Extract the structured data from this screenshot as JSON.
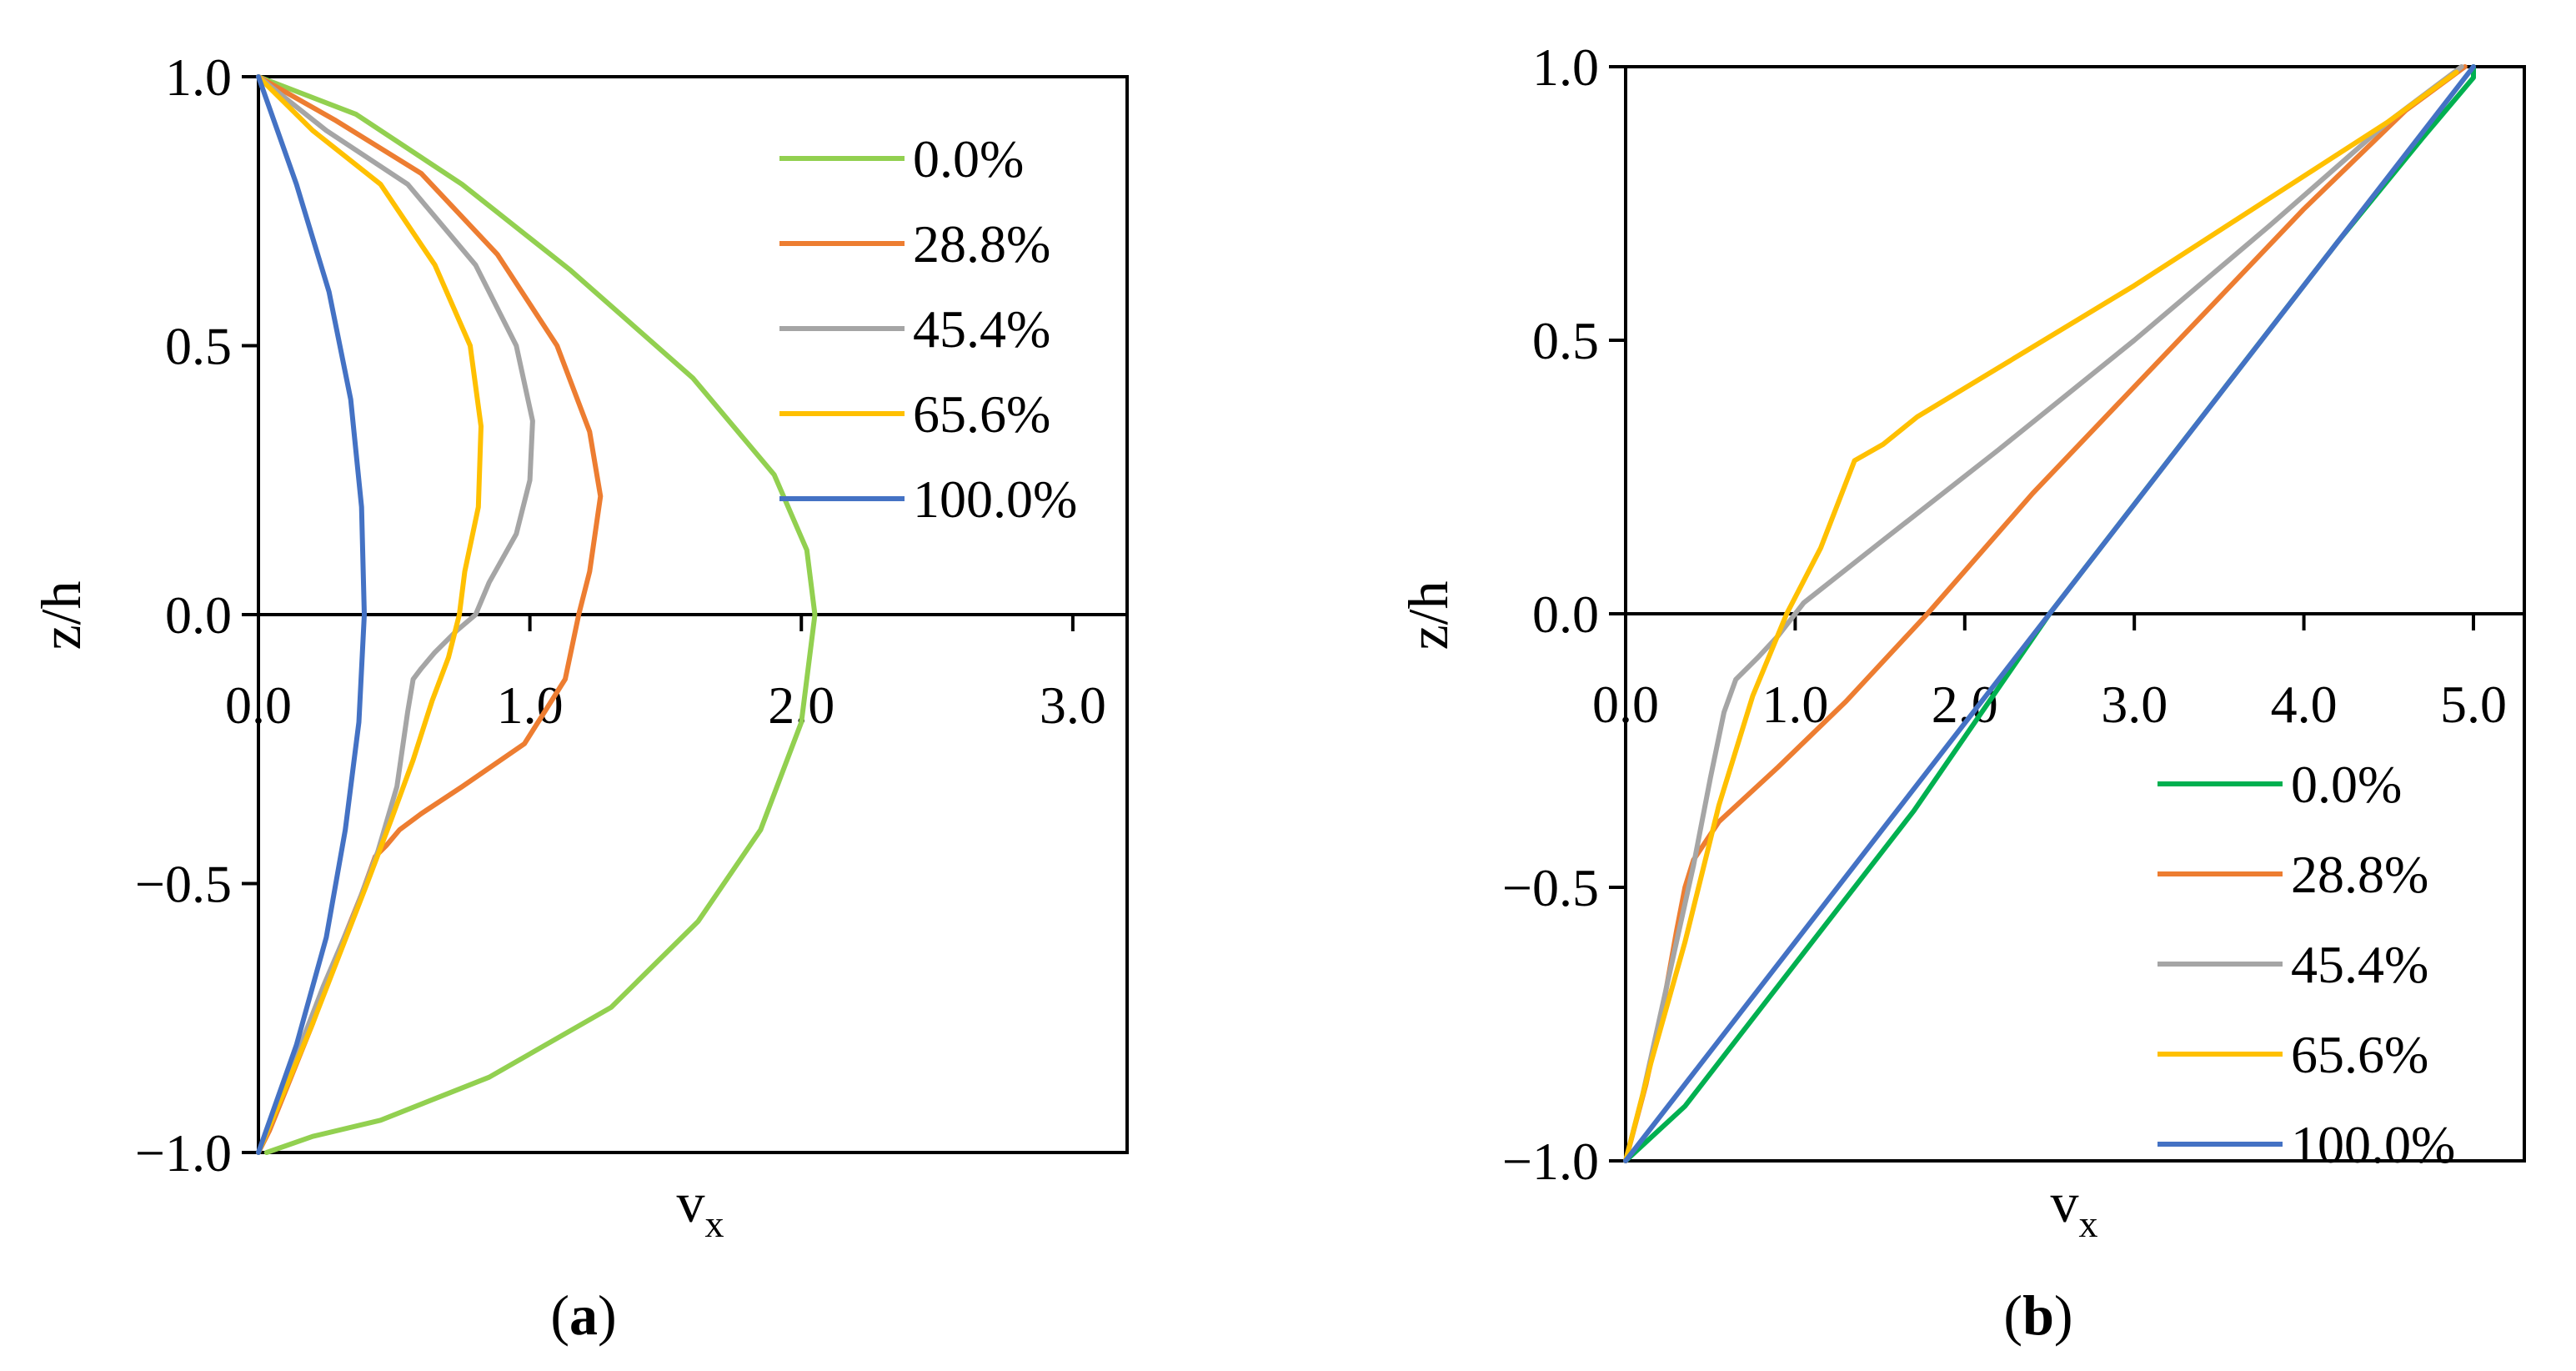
{
  "chart_data": [
    {
      "type": "line",
      "panel": "a",
      "caption_letter": "a",
      "caption_open": "(",
      "caption_close": ")",
      "xlabel": "v",
      "xlabel_sub": "x",
      "ylabel": "z/h",
      "xlim": [
        0,
        3.2
      ],
      "ylim": [
        -1,
        1
      ],
      "xticks": [
        0.0,
        1.0,
        2.0,
        3.0
      ],
      "xtick_labels": [
        "0.0",
        "1.0",
        "2.0",
        "3.0"
      ],
      "yticks": [
        1.0,
        0.5,
        0.0,
        -0.5,
        -1.0
      ],
      "ytick_labels": [
        "1.0",
        "0.5",
        "0.0",
        "−0.5",
        "−1.0"
      ],
      "legend_position": "top-right",
      "series": [
        {
          "name": "0.0%",
          "color": "#92d050",
          "points": [
            [
              0,
              1.0
            ],
            [
              0.36,
              0.93
            ],
            [
              0.75,
              0.8
            ],
            [
              1.15,
              0.64
            ],
            [
              1.6,
              0.44
            ],
            [
              1.9,
              0.26
            ],
            [
              2.02,
              0.12
            ],
            [
              2.05,
              0.0
            ],
            [
              2.0,
              -0.2
            ],
            [
              1.85,
              -0.4
            ],
            [
              1.62,
              -0.57
            ],
            [
              1.3,
              -0.73
            ],
            [
              0.85,
              -0.86
            ],
            [
              0.45,
              -0.94
            ],
            [
              0.2,
              -0.97
            ],
            [
              0.03,
              -1.0
            ]
          ]
        },
        {
          "name": "28.8%",
          "color": "#ed7d31",
          "points": [
            [
              0,
              1.0
            ],
            [
              0.28,
              0.92
            ],
            [
              0.6,
              0.82
            ],
            [
              0.88,
              0.67
            ],
            [
              1.1,
              0.5
            ],
            [
              1.22,
              0.34
            ],
            [
              1.26,
              0.22
            ],
            [
              1.22,
              0.08
            ],
            [
              1.18,
              0.0
            ],
            [
              1.13,
              -0.12
            ],
            [
              0.98,
              -0.24
            ],
            [
              0.75,
              -0.32
            ],
            [
              0.6,
              -0.37
            ],
            [
              0.52,
              -0.4
            ],
            [
              0.47,
              -0.43
            ],
            [
              0.43,
              -0.45
            ],
            [
              0.38,
              -0.52
            ],
            [
              0.3,
              -0.62
            ],
            [
              0.2,
              -0.76
            ],
            [
              0.12,
              -0.86
            ],
            [
              0.04,
              -0.96
            ],
            [
              0,
              -1.0
            ]
          ]
        },
        {
          "name": "45.4%",
          "color": "#a5a5a5",
          "points": [
            [
              0,
              1.0
            ],
            [
              0.25,
              0.9
            ],
            [
              0.55,
              0.8
            ],
            [
              0.8,
              0.65
            ],
            [
              0.95,
              0.5
            ],
            [
              1.01,
              0.36
            ],
            [
              1.0,
              0.25
            ],
            [
              0.95,
              0.15
            ],
            [
              0.85,
              0.06
            ],
            [
              0.8,
              0.0
            ],
            [
              0.73,
              -0.03
            ],
            [
              0.65,
              -0.07
            ],
            [
              0.6,
              -0.1
            ],
            [
              0.57,
              -0.12
            ],
            [
              0.55,
              -0.18
            ],
            [
              0.51,
              -0.32
            ],
            [
              0.44,
              -0.44
            ],
            [
              0.35,
              -0.56
            ],
            [
              0.24,
              -0.69
            ],
            [
              0.14,
              -0.82
            ],
            [
              0.05,
              -0.94
            ],
            [
              0,
              -1.0
            ]
          ]
        },
        {
          "name": "65.6%",
          "color": "#ffc000",
          "points": [
            [
              0,
              1.0
            ],
            [
              0.2,
              0.9
            ],
            [
              0.45,
              0.8
            ],
            [
              0.65,
              0.65
            ],
            [
              0.78,
              0.5
            ],
            [
              0.82,
              0.35
            ],
            [
              0.81,
              0.2
            ],
            [
              0.76,
              0.08
            ],
            [
              0.74,
              0.0
            ],
            [
              0.7,
              -0.08
            ],
            [
              0.64,
              -0.16
            ],
            [
              0.57,
              -0.27
            ],
            [
              0.49,
              -0.38
            ],
            [
              0.4,
              -0.5
            ],
            [
              0.3,
              -0.63
            ],
            [
              0.2,
              -0.76
            ],
            [
              0.1,
              -0.88
            ],
            [
              0,
              -1.0
            ]
          ]
        },
        {
          "name": "100.0%",
          "color": "#4472c4",
          "points": [
            [
              0,
              1.0
            ],
            [
              0.14,
              0.8
            ],
            [
              0.26,
              0.6
            ],
            [
              0.34,
              0.4
            ],
            [
              0.38,
              0.2
            ],
            [
              0.39,
              0.0
            ],
            [
              0.37,
              -0.2
            ],
            [
              0.32,
              -0.4
            ],
            [
              0.25,
              -0.6
            ],
            [
              0.14,
              -0.8
            ],
            [
              0,
              -1.0
            ]
          ]
        }
      ]
    },
    {
      "type": "line",
      "panel": "b",
      "caption_letter": "b",
      "caption_open": "(",
      "caption_close": ")",
      "xlabel": "v",
      "xlabel_sub": "x",
      "ylabel": "z/h",
      "xlim": [
        0,
        5.3
      ],
      "ylim": [
        -1,
        1
      ],
      "xticks": [
        0.0,
        1.0,
        2.0,
        3.0,
        4.0,
        5.0
      ],
      "xtick_labels": [
        "0.0",
        "1.0",
        "2.0",
        "3.0",
        "4.0",
        "5.0"
      ],
      "yticks": [
        1.0,
        0.5,
        0.0,
        -0.5,
        -1.0
      ],
      "ytick_labels": [
        "1.0",
        "0.5",
        "0.0",
        "−0.5",
        "−1.0"
      ],
      "legend_position": "bottom-right",
      "series": [
        {
          "name": "0.0%",
          "color": "#00b050",
          "points": [
            [
              0,
              -1.0
            ],
            [
              0.35,
              -0.9
            ],
            [
              1.0,
              -0.64
            ],
            [
              1.7,
              -0.36
            ],
            [
              2.5,
              0.0
            ],
            [
              3.4,
              0.36
            ],
            [
              4.2,
              0.68
            ],
            [
              4.7,
              0.87
            ],
            [
              5.0,
              0.98
            ],
            [
              5.0,
              1.0
            ]
          ]
        },
        {
          "name": "28.8%",
          "color": "#ed7d31",
          "points": [
            [
              0,
              -1.0
            ],
            [
              0.12,
              -0.86
            ],
            [
              0.22,
              -0.72
            ],
            [
              0.3,
              -0.58
            ],
            [
              0.35,
              -0.5
            ],
            [
              0.4,
              -0.45
            ],
            [
              0.55,
              -0.38
            ],
            [
              0.9,
              -0.28
            ],
            [
              1.3,
              -0.16
            ],
            [
              1.78,
              0.0
            ],
            [
              2.4,
              0.22
            ],
            [
              3.2,
              0.48
            ],
            [
              4.0,
              0.74
            ],
            [
              4.6,
              0.92
            ],
            [
              4.95,
              1.0
            ]
          ]
        },
        {
          "name": "45.4%",
          "color": "#a5a5a5",
          "points": [
            [
              0,
              -1.0
            ],
            [
              0.1,
              -0.88
            ],
            [
              0.2,
              -0.74
            ],
            [
              0.3,
              -0.6
            ],
            [
              0.4,
              -0.46
            ],
            [
              0.5,
              -0.3
            ],
            [
              0.58,
              -0.18
            ],
            [
              0.65,
              -0.12
            ],
            [
              0.78,
              -0.08
            ],
            [
              0.9,
              -0.04
            ],
            [
              1.05,
              0.02
            ],
            [
              1.5,
              0.13
            ],
            [
              2.2,
              0.3
            ],
            [
              3.0,
              0.5
            ],
            [
              3.8,
              0.71
            ],
            [
              4.5,
              0.9
            ],
            [
              4.93,
              1.0
            ]
          ]
        },
        {
          "name": "65.6%",
          "color": "#ffc000",
          "points": [
            [
              0,
              -1.0
            ],
            [
              0.15,
              -0.82
            ],
            [
              0.35,
              -0.6
            ],
            [
              0.55,
              -0.35
            ],
            [
              0.75,
              -0.15
            ],
            [
              0.95,
              0.0
            ],
            [
              1.15,
              0.12
            ],
            [
              1.3,
              0.24
            ],
            [
              1.35,
              0.28
            ],
            [
              1.52,
              0.31
            ],
            [
              1.72,
              0.36
            ],
            [
              2.2,
              0.45
            ],
            [
              3.0,
              0.6
            ],
            [
              3.8,
              0.76
            ],
            [
              4.5,
              0.9
            ],
            [
              4.9,
              0.99
            ]
          ]
        },
        {
          "name": "100.0%",
          "color": "#4472c4",
          "points": [
            [
              0,
              -1.0
            ],
            [
              0.5,
              -0.8
            ],
            [
              1.0,
              -0.6
            ],
            [
              1.5,
              -0.4
            ],
            [
              2.0,
              -0.2
            ],
            [
              2.5,
              0.0
            ],
            [
              3.0,
              0.2
            ],
            [
              3.5,
              0.4
            ],
            [
              4.0,
              0.6
            ],
            [
              4.5,
              0.8
            ],
            [
              4.95,
              0.98
            ],
            [
              5.0,
              1.0
            ]
          ]
        }
      ]
    }
  ]
}
